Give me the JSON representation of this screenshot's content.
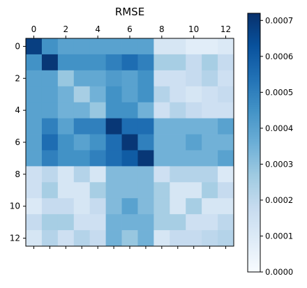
{
  "chart_data": {
    "type": "heatmap",
    "title": "RMSE",
    "xlabel": "",
    "ylabel": "",
    "x_ticks": [
      0,
      2,
      4,
      6,
      8,
      10,
      12
    ],
    "y_ticks": [
      0,
      2,
      4,
      6,
      8,
      10,
      12
    ],
    "x_tick_position": "top",
    "rows": 13,
    "cols": 13,
    "colormap": "Blues",
    "vmin": 0.0,
    "vmax": 0.00072,
    "colorbar_ticks": [
      "0.0000",
      "0.0001",
      "0.0002",
      "0.0003",
      "0.0004",
      "0.0005",
      "0.0006",
      "0.0007"
    ],
    "colorbar_tick_values": [
      0.0,
      0.0001,
      0.0002,
      0.0003,
      0.0004,
      0.0005,
      0.0006,
      0.0007
    ],
    "grid": false,
    "values": [
      [
        0.00068,
        0.00045,
        0.0004,
        0.0004,
        0.0004,
        0.0004,
        0.0004,
        0.0004,
        0.00012,
        0.00012,
        8e-05,
        8e-05,
        0.0001
      ],
      [
        0.00045,
        0.0007,
        0.00045,
        0.00045,
        0.00045,
        0.0005,
        0.00055,
        0.0005,
        0.00025,
        0.00025,
        0.00018,
        0.00025,
        0.00018
      ],
      [
        0.0004,
        0.0004,
        0.00028,
        0.00038,
        0.00038,
        0.00042,
        0.0004,
        0.00045,
        0.00015,
        0.00015,
        0.00018,
        0.00022,
        0.00015
      ],
      [
        0.0004,
        0.0004,
        0.00035,
        0.00025,
        0.00035,
        0.00045,
        0.0004,
        0.00045,
        0.00022,
        0.00015,
        0.00012,
        0.00015,
        0.00018
      ],
      [
        0.0004,
        0.0004,
        0.00035,
        0.00035,
        0.00028,
        0.00045,
        0.00045,
        0.00035,
        0.00015,
        0.00022,
        0.00018,
        0.00015,
        0.00015
      ],
      [
        0.0004,
        0.0005,
        0.0004,
        0.0005,
        0.0005,
        0.0007,
        0.00055,
        0.00055,
        0.00035,
        0.00035,
        0.00035,
        0.00035,
        0.0004
      ],
      [
        0.0004,
        0.00055,
        0.00045,
        0.0004,
        0.00045,
        0.00055,
        0.0007,
        0.0005,
        0.00035,
        0.00035,
        0.0004,
        0.00035,
        0.00035
      ],
      [
        0.0004,
        0.0005,
        0.00045,
        0.00045,
        0.0005,
        0.00055,
        0.0006,
        0.0007,
        0.00035,
        0.00035,
        0.00035,
        0.00035,
        0.0004
      ],
      [
        0.00015,
        0.0002,
        0.00012,
        0.00022,
        0.00012,
        0.00032,
        0.00032,
        0.00032,
        0.00015,
        0.00022,
        0.00022,
        0.00022,
        0.0001
      ],
      [
        0.00015,
        0.00025,
        0.00012,
        0.00012,
        0.00025,
        0.00032,
        0.00032,
        0.00032,
        0.00025,
        0.00012,
        0.00012,
        0.00025,
        0.00018
      ],
      [
        0.0001,
        0.00018,
        0.00018,
        0.00012,
        0.00018,
        0.00032,
        0.0004,
        0.00032,
        0.00025,
        0.00012,
        0.00025,
        0.00012,
        0.00012
      ],
      [
        0.00018,
        0.00025,
        0.00025,
        0.00015,
        0.00015,
        0.00035,
        0.00035,
        0.00035,
        0.00025,
        0.00025,
        0.00015,
        0.00015,
        0.0002
      ],
      [
        0.00012,
        0.00022,
        0.00015,
        0.00022,
        0.00018,
        0.00035,
        0.00028,
        0.00035,
        0.00012,
        0.00018,
        0.00018,
        0.0002,
        0.00022
      ]
    ]
  }
}
